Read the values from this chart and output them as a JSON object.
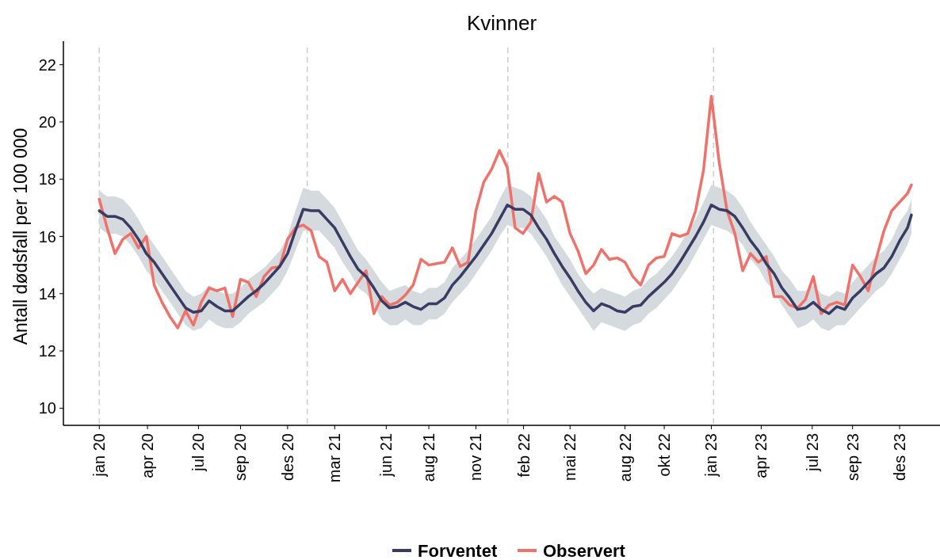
{
  "chart_data": {
    "type": "line",
    "title": "Kvinner",
    "ylabel": "Antall dødsfall per 100 000",
    "x": [
      "2020-01-06",
      "2020-01-20",
      "2020-02-03",
      "2020-02-17",
      "2020-03-02",
      "2020-03-16",
      "2020-03-30",
      "2020-04-13",
      "2020-04-27",
      "2020-05-11",
      "2020-05-25",
      "2020-06-08",
      "2020-06-22",
      "2020-07-06",
      "2020-07-20",
      "2020-08-03",
      "2020-08-17",
      "2020-08-31",
      "2020-09-14",
      "2020-09-28",
      "2020-10-12",
      "2020-10-26",
      "2020-11-09",
      "2020-11-23",
      "2020-12-07",
      "2020-12-21",
      "2021-01-04",
      "2021-01-18",
      "2021-02-01",
      "2021-02-15",
      "2021-03-01",
      "2021-03-15",
      "2021-03-29",
      "2021-04-12",
      "2021-04-26",
      "2021-05-10",
      "2021-05-24",
      "2021-06-07",
      "2021-06-21",
      "2021-07-05",
      "2021-07-19",
      "2021-08-02",
      "2021-08-16",
      "2021-08-30",
      "2021-09-13",
      "2021-09-27",
      "2021-10-11",
      "2021-10-25",
      "2021-11-08",
      "2021-11-22",
      "2021-12-06",
      "2021-12-20",
      "2022-01-03",
      "2022-01-17",
      "2022-01-31",
      "2022-02-14",
      "2022-02-28",
      "2022-03-14",
      "2022-03-28",
      "2022-04-11",
      "2022-04-25",
      "2022-05-09",
      "2022-05-23",
      "2022-06-06",
      "2022-06-20",
      "2022-07-04",
      "2022-07-18",
      "2022-08-01",
      "2022-08-15",
      "2022-08-29",
      "2022-09-12",
      "2022-09-26",
      "2022-10-10",
      "2022-10-24",
      "2022-11-07",
      "2022-11-21",
      "2022-12-05",
      "2022-12-19",
      "2023-01-02",
      "2023-01-16",
      "2023-01-30",
      "2023-02-13",
      "2023-02-27",
      "2023-03-13",
      "2023-03-27",
      "2023-04-10",
      "2023-04-24",
      "2023-05-08",
      "2023-05-22",
      "2023-06-05",
      "2023-06-19",
      "2023-07-03",
      "2023-07-17",
      "2023-07-31",
      "2023-08-14",
      "2023-08-28",
      "2023-09-11",
      "2023-09-25",
      "2023-10-09",
      "2023-10-23",
      "2023-11-06",
      "2023-11-20",
      "2023-12-04",
      "2023-12-18",
      "2023-12-25"
    ],
    "series": [
      {
        "name": "Observert",
        "color": "#f0706a",
        "values": [
          17.3,
          16.3,
          15.4,
          15.9,
          16.1,
          15.6,
          16.0,
          14.3,
          13.7,
          13.2,
          12.8,
          13.4,
          12.9,
          13.7,
          14.2,
          14.1,
          14.2,
          13.2,
          14.5,
          14.4,
          13.9,
          14.6,
          14.9,
          14.95,
          15.9,
          16.3,
          16.4,
          16.2,
          15.3,
          15.1,
          14.1,
          14.5,
          14.0,
          14.4,
          14.8,
          13.3,
          13.9,
          13.6,
          13.7,
          13.95,
          14.3,
          15.2,
          15.0,
          15.05,
          15.1,
          15.6,
          14.95,
          15.1,
          16.9,
          17.9,
          18.35,
          19.0,
          18.4,
          16.3,
          16.1,
          16.5,
          18.2,
          17.2,
          17.4,
          17.2,
          16.1,
          15.5,
          14.7,
          15.0,
          15.55,
          15.2,
          15.25,
          15.1,
          14.6,
          14.3,
          15.0,
          15.25,
          15.3,
          16.1,
          16.0,
          16.1,
          16.9,
          18.3,
          20.9,
          18.6,
          16.9,
          16.1,
          14.8,
          15.4,
          15.1,
          15.3,
          13.9,
          13.9,
          13.6,
          13.5,
          13.8,
          14.6,
          13.3,
          13.6,
          13.7,
          13.6,
          15.0,
          14.6,
          14.1,
          15.2,
          16.2,
          16.9,
          17.2,
          17.5,
          17.8
        ]
      },
      {
        "name": "Forventet",
        "color": "#383b63",
        "values": [
          16.9,
          16.7,
          16.7,
          16.6,
          16.3,
          15.9,
          15.4,
          15.1,
          14.7,
          14.3,
          13.9,
          13.5,
          13.35,
          13.4,
          13.75,
          13.55,
          13.4,
          13.4,
          13.65,
          13.9,
          14.1,
          14.35,
          14.65,
          14.95,
          15.4,
          16.2,
          16.95,
          16.9,
          16.9,
          16.6,
          16.3,
          15.8,
          15.3,
          14.85,
          14.6,
          14.2,
          13.75,
          13.5,
          13.55,
          13.7,
          13.55,
          13.45,
          13.65,
          13.65,
          13.85,
          14.3,
          14.6,
          14.95,
          15.3,
          15.7,
          16.1,
          16.6,
          17.1,
          16.95,
          16.95,
          16.75,
          16.3,
          15.9,
          15.4,
          14.95,
          14.55,
          14.1,
          13.7,
          13.4,
          13.65,
          13.55,
          13.4,
          13.35,
          13.55,
          13.6,
          13.9,
          14.15,
          14.4,
          14.7,
          15.1,
          15.55,
          16.0,
          16.5,
          17.1,
          16.95,
          16.9,
          16.7,
          16.3,
          15.85,
          15.5,
          15.05,
          14.7,
          14.2,
          13.85,
          13.45,
          13.5,
          13.7,
          13.45,
          13.3,
          13.55,
          13.45,
          13.85,
          14.1,
          14.4,
          14.7,
          14.9,
          15.3,
          15.85,
          16.3,
          16.75
        ],
        "lower": [
          16.3,
          16.1,
          16.1,
          16.0,
          15.7,
          15.3,
          14.8,
          14.5,
          14.1,
          13.7,
          13.3,
          12.9,
          12.7,
          12.8,
          13.1,
          12.9,
          12.8,
          12.8,
          13.0,
          13.3,
          13.5,
          13.7,
          14.0,
          14.3,
          14.8,
          15.5,
          16.2,
          16.2,
          16.2,
          15.9,
          15.6,
          15.1,
          14.7,
          14.2,
          14.0,
          13.6,
          13.1,
          12.9,
          12.9,
          13.1,
          12.9,
          12.9,
          13.1,
          13.1,
          13.3,
          13.7,
          14.0,
          14.3,
          14.7,
          15.1,
          15.5,
          16.0,
          16.4,
          16.3,
          16.3,
          16.1,
          15.7,
          15.3,
          14.8,
          14.3,
          13.9,
          13.5,
          13.1,
          12.7,
          13.0,
          12.9,
          12.8,
          12.7,
          12.9,
          13.0,
          13.3,
          13.5,
          13.8,
          14.1,
          14.5,
          14.9,
          15.4,
          15.9,
          16.4,
          16.3,
          16.2,
          16.0,
          15.7,
          15.2,
          14.9,
          14.4,
          14.1,
          13.6,
          13.2,
          12.8,
          12.9,
          13.1,
          12.8,
          12.7,
          12.9,
          12.9,
          13.2,
          13.5,
          13.8,
          14.1,
          14.3,
          14.7,
          15.2,
          15.7,
          16.1
        ],
        "upper": [
          17.6,
          17.4,
          17.4,
          17.3,
          17.0,
          16.6,
          16.1,
          15.7,
          15.3,
          14.9,
          14.5,
          14.1,
          13.9,
          14.0,
          14.3,
          14.1,
          14.0,
          14.0,
          14.2,
          14.5,
          14.7,
          14.9,
          15.2,
          15.5,
          16.0,
          16.9,
          17.7,
          17.6,
          17.6,
          17.3,
          17.0,
          16.5,
          16.0,
          15.5,
          15.2,
          14.8,
          14.4,
          14.1,
          14.2,
          14.3,
          14.1,
          14.0,
          14.2,
          14.2,
          14.4,
          14.9,
          15.2,
          15.5,
          15.9,
          16.3,
          16.7,
          17.3,
          17.8,
          17.7,
          17.6,
          17.4,
          17.0,
          16.6,
          16.0,
          15.6,
          15.2,
          14.7,
          14.3,
          14.0,
          14.2,
          14.1,
          14.0,
          13.9,
          14.1,
          14.2,
          14.5,
          14.7,
          15.0,
          15.3,
          15.7,
          16.2,
          16.6,
          17.2,
          17.8,
          17.7,
          17.6,
          17.4,
          17.0,
          16.5,
          16.1,
          15.7,
          15.3,
          14.8,
          14.5,
          14.1,
          14.1,
          14.3,
          14.0,
          13.9,
          14.1,
          14.0,
          14.4,
          14.7,
          15.0,
          15.3,
          15.5,
          15.9,
          16.5,
          16.9,
          17.3
        ]
      }
    ],
    "xlim": [
      "2019-11-03",
      "2024-02-14"
    ],
    "xticks": [
      {
        "value": "2020-01-06",
        "label": "jan 20"
      },
      {
        "value": "2020-04-01",
        "label": "apr 20"
      },
      {
        "value": "2020-07-01",
        "label": "jul 20"
      },
      {
        "value": "2020-09-14",
        "label": "sep 20"
      },
      {
        "value": "2020-12-07",
        "label": "des 20"
      },
      {
        "value": "2021-03-01",
        "label": "mar 21"
      },
      {
        "value": "2021-06-01",
        "label": "jun 21"
      },
      {
        "value": "2021-08-16",
        "label": "aug 21"
      },
      {
        "value": "2021-11-08",
        "label": "nov 21"
      },
      {
        "value": "2022-02-01",
        "label": "feb 22"
      },
      {
        "value": "2022-04-25",
        "label": "mai 22"
      },
      {
        "value": "2022-08-01",
        "label": "aug 22"
      },
      {
        "value": "2022-10-10",
        "label": "okt 22"
      },
      {
        "value": "2023-01-02",
        "label": "jan 23"
      },
      {
        "value": "2023-04-01",
        "label": "apr 23"
      },
      {
        "value": "2023-07-01",
        "label": "jul 23"
      },
      {
        "value": "2023-09-11",
        "label": "sep 23"
      },
      {
        "value": "2023-12-04",
        "label": "des 23"
      }
    ],
    "ylim": [
      9.4,
      22.6
    ],
    "yticks": [
      10,
      12,
      14,
      16,
      18,
      20,
      22
    ],
    "ref_lines": [
      {
        "axis": "x",
        "value": "2020-01-06",
        "color": "#cccccc",
        "line_style": "dashed"
      },
      {
        "axis": "x",
        "value": "2021-01-11",
        "color": "#cccccc",
        "line_style": "dashed"
      },
      {
        "axis": "x",
        "value": "2022-01-04",
        "color": "#cccccc",
        "line_style": "dashed"
      },
      {
        "axis": "x",
        "value": "2023-01-06",
        "color": "#cccccc",
        "line_style": "dashed"
      }
    ],
    "grid": false,
    "legend": "bottom",
    "line_style": "solid",
    "marker": "none"
  }
}
